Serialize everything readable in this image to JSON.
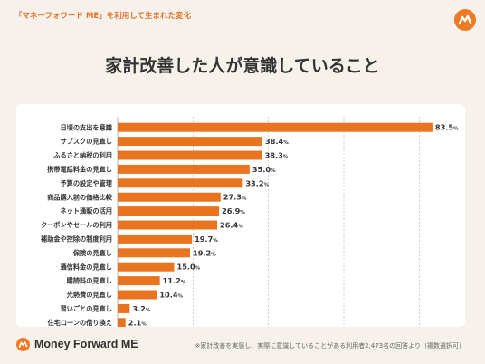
{
  "header": {
    "top_label": "「マネーフォワード ME」を利用して生まれた変化",
    "title": "家計改善した人が意識していること"
  },
  "footer": {
    "brand": "Money Forward ME",
    "note": "※家計改善を実感し、実際に意識していることがある利用者2,473名の回答より（複数選択可）"
  },
  "colors": {
    "accent": "#ee7a24",
    "bar": "#e9741f",
    "background": "#f6f1ea"
  },
  "icons": {
    "brand": "money-forward-logo-icon"
  },
  "chart_data": {
    "type": "bar",
    "orientation": "horizontal",
    "categories": [
      "日頃の支出を意識",
      "サブスクの見直し",
      "ふるさと納税の利用",
      "携帯電話料金の見直し",
      "予算の設定や管理",
      "商品購入前の価格比較",
      "ネット通販の活用",
      "クーポンやセールの利用",
      "補助金や控除の制度利用",
      "保険の見直し",
      "通信料金の見直し",
      "購読料の見直し",
      "光熱費の見直し",
      "習いごとの見直し",
      "住宅ローンの借り換え"
    ],
    "values": [
      83.5,
      38.4,
      38.3,
      35.0,
      33.2,
      27.3,
      26.9,
      26.4,
      19.7,
      19.2,
      15.0,
      11.2,
      10.4,
      3.2,
      2.1
    ],
    "value_labels": [
      "83.5",
      "38.4",
      "38.3",
      "35.0",
      "33.2",
      "27.3",
      "26.9",
      "26.4",
      "19.7",
      "19.2",
      "15.0",
      "11.2",
      "10.4",
      "3.2",
      "2.1"
    ],
    "unit": "%",
    "xticks": [
      "0",
      "20",
      "40",
      "60",
      "80"
    ],
    "xlim": [
      0,
      90
    ],
    "grid": true
  }
}
